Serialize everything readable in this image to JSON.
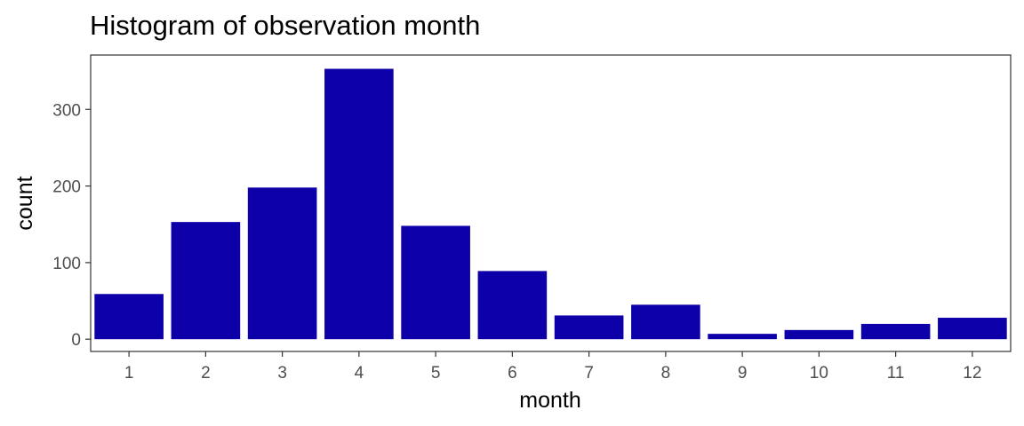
{
  "chart_data": {
    "type": "bar",
    "title": "Histogram of observation month",
    "xlabel": "month",
    "ylabel": "count",
    "categories": [
      "1",
      "2",
      "3",
      "4",
      "5",
      "6",
      "7",
      "8",
      "9",
      "10",
      "11",
      "12"
    ],
    "values": [
      59,
      153,
      198,
      353,
      148,
      89,
      31,
      45,
      7,
      12,
      20,
      28
    ],
    "ylim": [
      -16,
      371
    ],
    "yticks": [
      0,
      100,
      200,
      300
    ],
    "bar_color": "#0E00A8",
    "grid": false,
    "legend": "none"
  }
}
